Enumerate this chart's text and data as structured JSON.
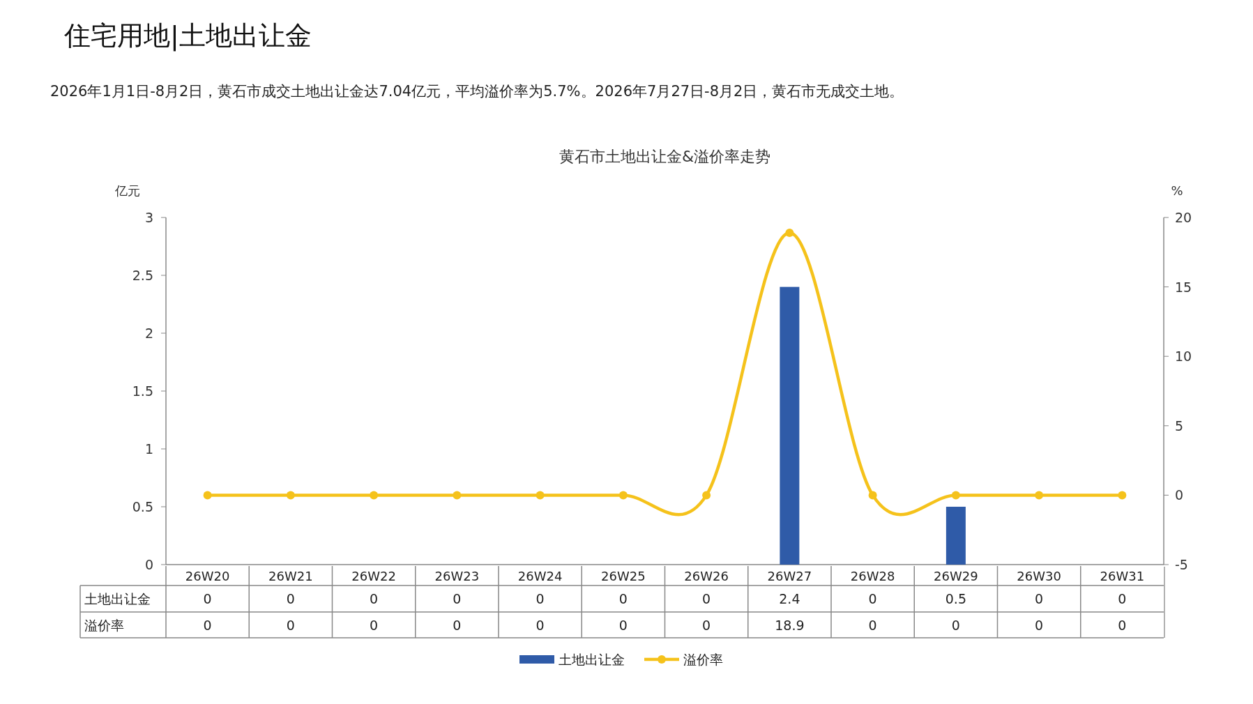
{
  "chart_data": {
    "type": "bar",
    "title": "黄石市土地出让金&溢价率走势",
    "annotations": [
      "住宅用地|土地出让金",
      "2026年1月1日-8月2日，黄石市成交土地出让金达7.04亿元，平均溢价率为5.7%。2026年7月27日-8月2日，黄石市无成交土地。"
    ],
    "ylabel": "亿元",
    "y2label": "%",
    "categories": [
      "26W20",
      "26W21",
      "26W22",
      "26W23",
      "26W24",
      "26W25",
      "26W26",
      "26W27",
      "26W28",
      "26W29",
      "26W30",
      "26W31"
    ],
    "series": [
      {
        "name": "土地出让金",
        "color": "#2f5ba8",
        "values": [
          0,
          0,
          0,
          0,
          0,
          0,
          0,
          2.4,
          0,
          0.5,
          0,
          0
        ]
      },
      {
        "name": "溢价率",
        "type": "line",
        "axis": "y2",
        "color": "#f5c21b",
        "values": [
          0,
          0,
          0,
          0,
          0,
          0,
          0,
          18.9,
          0,
          0,
          0,
          0
        ]
      }
    ],
    "ylim": [
      0,
      3
    ],
    "yticks": [
      0,
      0.5,
      1,
      1.5,
      2,
      2.5,
      3
    ],
    "y2lim": [
      -5,
      20
    ],
    "y2ticks": [
      -5,
      0,
      5,
      10,
      15,
      20
    ],
    "data_labels": true,
    "legend": "bottom",
    "marker": "circle",
    "grid": false
  }
}
